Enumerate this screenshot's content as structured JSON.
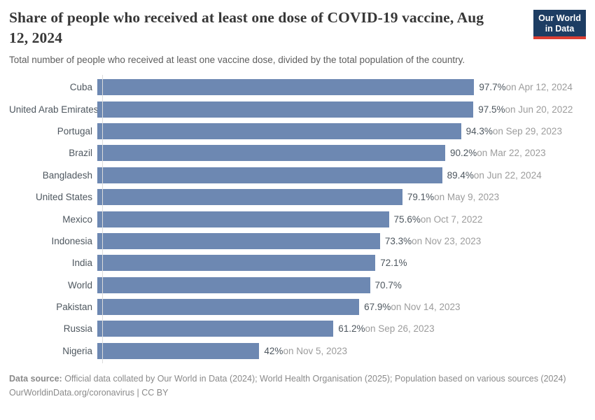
{
  "header": {
    "title": "Share of people who received at least one dose of COVID-19 vaccine, Aug 12, 2024",
    "title_lines": [
      "Share of people who received at least one dose of COVID-19 vaccine, Aug",
      "12, 2024"
    ],
    "subtitle": "Total number of people who received at least one vaccine dose, divided by the total population of the country.",
    "logo": {
      "line1": "Our World",
      "line2": "in Data",
      "bg_color": "#1d3d63",
      "accent_color": "#dc3e32"
    }
  },
  "chart_data": {
    "type": "bar",
    "orientation": "horizontal",
    "title": "Share of people who received at least one dose of COVID-19 vaccine, Aug 12, 2024",
    "unit": "%",
    "xlim": [
      0,
      100
    ],
    "grid": false,
    "legend": false,
    "bar_color": "#6d88b2",
    "axis_line_color": "#dcdcdc",
    "categories": [
      "Cuba",
      "United Arab Emirates",
      "Portugal",
      "Brazil",
      "Bangladesh",
      "United States",
      "Mexico",
      "Indonesia",
      "India",
      "World",
      "Pakistan",
      "Russia",
      "Nigeria"
    ],
    "values": [
      97.7,
      97.5,
      94.3,
      90.2,
      89.4,
      79.1,
      75.6,
      73.3,
      72.1,
      70.7,
      67.9,
      61.2,
      42
    ],
    "series": [
      {
        "country": "Cuba",
        "value": 97.7,
        "value_label": "97.7%",
        "date_label": "on Apr 12, 2024"
      },
      {
        "country": "United Arab Emirates",
        "value": 97.5,
        "value_label": "97.5%",
        "date_label": "on Jun 20, 2022"
      },
      {
        "country": "Portugal",
        "value": 94.3,
        "value_label": "94.3%",
        "date_label": "on Sep 29, 2023"
      },
      {
        "country": "Brazil",
        "value": 90.2,
        "value_label": "90.2%",
        "date_label": "on Mar 22, 2023"
      },
      {
        "country": "Bangladesh",
        "value": 89.4,
        "value_label": "89.4%",
        "date_label": "on Jun 22, 2024"
      },
      {
        "country": "United States",
        "value": 79.1,
        "value_label": "79.1%",
        "date_label": "on May 9, 2023"
      },
      {
        "country": "Mexico",
        "value": 75.6,
        "value_label": "75.6%",
        "date_label": "on Oct 7, 2022"
      },
      {
        "country": "Indonesia",
        "value": 73.3,
        "value_label": "73.3%",
        "date_label": "on Nov 23, 2023"
      },
      {
        "country": "India",
        "value": 72.1,
        "value_label": "72.1%",
        "date_label": ""
      },
      {
        "country": "World",
        "value": 70.7,
        "value_label": "70.7%",
        "date_label": ""
      },
      {
        "country": "Pakistan",
        "value": 67.9,
        "value_label": "67.9%",
        "date_label": "on Nov 14, 2023"
      },
      {
        "country": "Russia",
        "value": 61.2,
        "value_label": "61.2%",
        "date_label": "on Sep 26, 2023"
      },
      {
        "country": "Nigeria",
        "value": 42,
        "value_label": "42%",
        "date_label": "on Nov 5, 2023"
      }
    ]
  },
  "footer": {
    "data_source_label": "Data source:",
    "data_source_text": " Official data collated by Our World in Data (2024); World Health Organisation (2025); Population based on various sources (2024)",
    "license_text": "OurWorldinData.org/coronavirus | CC BY"
  }
}
